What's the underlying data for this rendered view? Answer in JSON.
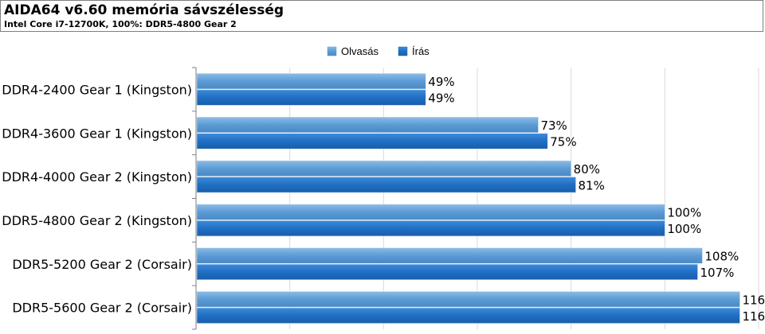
{
  "chart_data": {
    "type": "bar",
    "orientation": "horizontal",
    "title": "AIDA64 v6.60 memória sávszélesség",
    "subtitle": "Intel Core i7-12700K, 100%: DDR5-4800 Gear 2",
    "categories": [
      "DDR4-2400 Gear 1 (Kingston)",
      "DDR4-3600 Gear 1 (Kingston)",
      "DDR4-4000 Gear 2 (Kingston)",
      "DDR5-4800 Gear 2 (Kingston)",
      "DDR5-5200 Gear 2 (Corsair)",
      "DDR5-5600 Gear 2 (Corsair)"
    ],
    "series": [
      {
        "name": "Olvasás",
        "color": "#5b9bd5",
        "values": [
          49,
          73,
          80,
          100,
          108,
          116
        ]
      },
      {
        "name": "Írás",
        "color": "#1f6fc5",
        "values": [
          49,
          75,
          81,
          100,
          107,
          116
        ]
      }
    ],
    "value_suffix": "%",
    "xlim": [
      0,
      120
    ],
    "grid": true,
    "legend_position": "top-center"
  }
}
